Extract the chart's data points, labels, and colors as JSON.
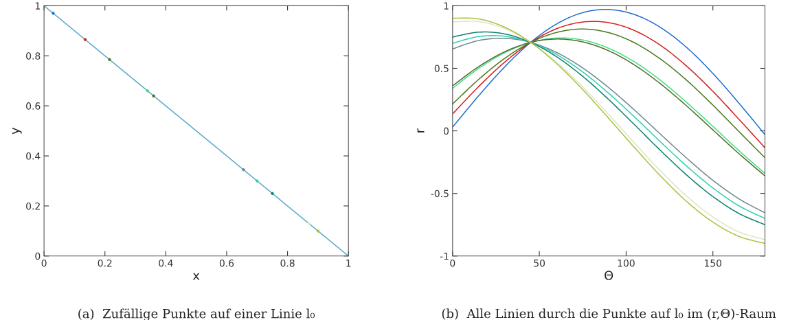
{
  "chart_data": [
    {
      "type": "scatter",
      "xlabel": "x",
      "ylabel": "y",
      "xlim": [
        0,
        1
      ],
      "ylim": [
        0,
        1
      ],
      "xticks": [
        0,
        0.2,
        0.4,
        0.6,
        0.8,
        1
      ],
      "yticks": [
        0,
        0.2,
        0.4,
        0.6,
        0.8,
        1
      ],
      "grid": false,
      "legend": false,
      "series": [
        {
          "type": "line",
          "color": "#5aa8cc",
          "x": [
            0,
            1
          ],
          "values": [
            1,
            0
          ],
          "marker": "none",
          "line_style": "solid"
        },
        {
          "type": "scatter",
          "marker": "circle",
          "x": [
            0.03,
            0.135,
            0.215,
            0.34,
            0.36,
            0.655,
            0.7,
            0.75,
            0.87,
            0.9
          ],
          "values": [
            0.97,
            0.865,
            0.785,
            0.66,
            0.64,
            0.345,
            0.3,
            0.25,
            0.13,
            0.1
          ],
          "colors": [
            "#1f6fd0",
            "#d62020",
            "#4a7a20",
            "#40e080",
            "#556b2f",
            "#708890",
            "#30d0b0",
            "#108070",
            "#d8e8c8",
            "#b0c040"
          ]
        }
      ],
      "annotations": [
        "(a)  Zufällige Punkte auf einer Linie l₀"
      ]
    },
    {
      "type": "line",
      "xlabel": "Θ",
      "ylabel": "r",
      "xlim": [
        0,
        180
      ],
      "ylim": [
        -1,
        1
      ],
      "xticks": [
        0,
        50,
        100,
        150
      ],
      "yticks": [
        -1,
        -0.5,
        0,
        0.5,
        1
      ],
      "grid": false,
      "legend": false,
      "marker": "none",
      "line_style": "solid",
      "x": [
        0,
        15,
        30,
        45,
        60,
        75,
        90,
        105,
        120,
        135,
        150,
        165,
        180
      ],
      "series": [
        {
          "color": "#1f6fd0",
          "values": [
            0.03,
            0.28,
            0.511,
            0.707,
            0.855,
            0.945,
            0.97,
            0.929,
            0.825,
            0.665,
            0.459,
            0.222,
            -0.03
          ]
        },
        {
          "color": "#d62020",
          "values": [
            0.135,
            0.354,
            0.549,
            0.707,
            0.817,
            0.87,
            0.865,
            0.801,
            0.682,
            0.516,
            0.316,
            0.093,
            -0.135
          ]
        },
        {
          "color": "#4a7a20",
          "values": [
            0.215,
            0.411,
            0.579,
            0.707,
            0.787,
            0.814,
            0.785,
            0.703,
            0.572,
            0.403,
            0.206,
            -0.005,
            -0.215
          ]
        },
        {
          "color": "#40e080",
          "values": [
            0.34,
            0.499,
            0.624,
            0.707,
            0.742,
            0.726,
            0.66,
            0.55,
            0.402,
            0.226,
            0.036,
            -0.158,
            -0.34
          ]
        },
        {
          "color": "#556b2f",
          "values": [
            0.36,
            0.513,
            0.632,
            0.707,
            0.734,
            0.711,
            0.64,
            0.525,
            0.374,
            0.198,
            0.008,
            -0.182,
            -0.36
          ]
        },
        {
          "color": "#708890",
          "values": [
            0.655,
            0.722,
            0.74,
            0.707,
            0.626,
            0.503,
            0.345,
            0.164,
            -0.029,
            -0.219,
            -0.395,
            -0.543,
            -0.655
          ]
        },
        {
          "color": "#30d0b0",
          "values": [
            0.7,
            0.754,
            0.756,
            0.707,
            0.61,
            0.471,
            0.3,
            0.109,
            -0.09,
            -0.283,
            -0.456,
            -0.599,
            -0.7
          ]
        },
        {
          "color": "#108070",
          "values": [
            0.75,
            0.789,
            0.775,
            0.707,
            0.592,
            0.436,
            0.25,
            0.047,
            -0.159,
            -0.354,
            -0.525,
            -0.66,
            -0.75
          ]
        },
        {
          "color": "#d8e8c8",
          "values": [
            0.87,
            0.874,
            0.818,
            0.707,
            0.548,
            0.351,
            0.13,
            -0.1,
            -0.322,
            -0.523,
            -0.688,
            -0.807,
            -0.87
          ]
        },
        {
          "color": "#b0c040",
          "values": [
            0.9,
            0.895,
            0.829,
            0.707,
            0.537,
            0.33,
            0.1,
            -0.136,
            -0.363,
            -0.566,
            -0.729,
            -0.843,
            -0.9
          ]
        }
      ],
      "annotations": [
        "(b)  Alle Linien durch die Punkte auf l₀ im (r,Θ)-Raum"
      ]
    }
  ]
}
